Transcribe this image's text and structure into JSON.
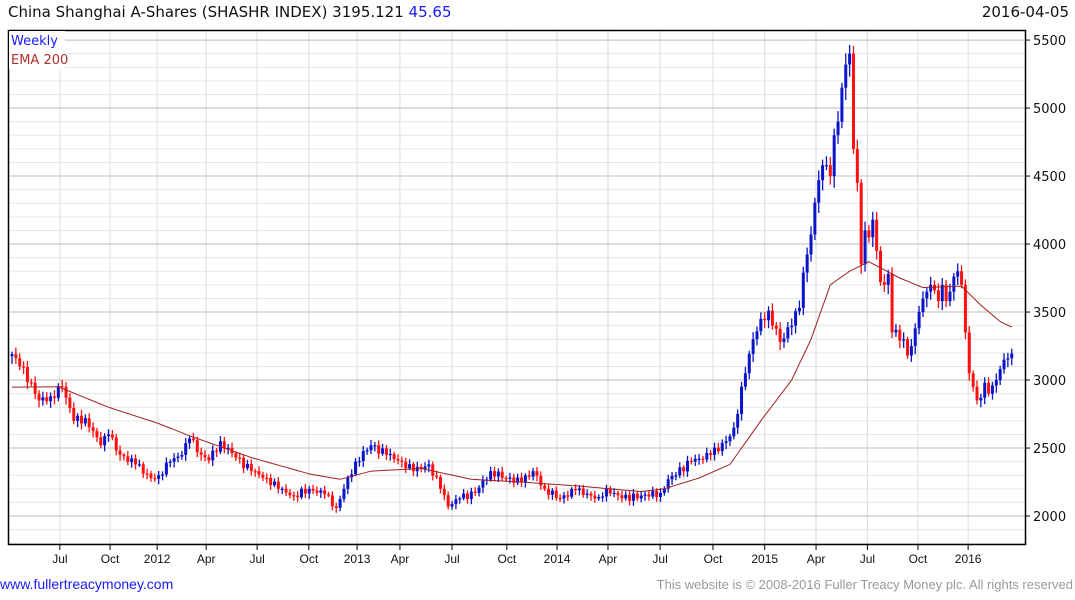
{
  "header": {
    "title": "China Shanghai A-Shares (SHASHR INDEX) 3195.121",
    "change": "45.65",
    "date": "2016-04-05"
  },
  "footer": {
    "link": "www.fullertreacymoney.com",
    "copyright": "This website is © 2008-2016 Fuller Treacy Money plc. All rights reserved"
  },
  "chart_data": {
    "type": "candlestick",
    "title": "China Shanghai A-Shares (SHASHR INDEX)",
    "legend": [
      "Weekly",
      "EMA 200"
    ],
    "legend_placement": "top-left",
    "colors": {
      "up": "#0a14c8",
      "down": "#ff1010",
      "ema": "#a02020",
      "legend_weekly": "#1a1aff",
      "legend_ema": "#b03030",
      "grid_major": "#bdbdbd",
      "grid_minor": "#e6e6e6"
    },
    "ylim": [
      1787,
      5574
    ],
    "yticks": [
      2000,
      2500,
      3000,
      3500,
      4000,
      4500,
      5000,
      5500
    ],
    "ygrid_minor_step": 100,
    "weeks": 260,
    "xticks": [
      {
        "label": "Jul",
        "week": 12.4
      },
      {
        "label": "Oct",
        "week": 25.4
      },
      {
        "label": "2012",
        "week": 37.6
      },
      {
        "label": "Apr",
        "week": 50.3
      },
      {
        "label": "Jul",
        "week": 63.5
      },
      {
        "label": "Oct",
        "week": 76.9
      },
      {
        "label": "2013",
        "week": 89.4
      },
      {
        "label": "Apr",
        "week": 100.5
      },
      {
        "label": "Jul",
        "week": 114
      },
      {
        "label": "Oct",
        "week": 128.2
      },
      {
        "label": "2014",
        "week": 141.2
      },
      {
        "label": "Apr",
        "week": 154.4
      },
      {
        "label": "Jul",
        "week": 167.9
      },
      {
        "label": "Oct",
        "week": 181.6
      },
      {
        "label": "2015",
        "week": 195
      },
      {
        "label": "Apr",
        "week": 208.3
      },
      {
        "label": "Jul",
        "week": 221.6
      },
      {
        "label": "Oct",
        "week": 234.7
      },
      {
        "label": "2016",
        "week": 247.7
      }
    ],
    "close_anchors": [
      [
        0,
        3190
      ],
      [
        2,
        3100
      ],
      [
        5,
        2980
      ],
      [
        7,
        2850
      ],
      [
        10,
        2880
      ],
      [
        13,
        2950
      ],
      [
        16,
        2700
      ],
      [
        19,
        2720
      ],
      [
        23,
        2520
      ],
      [
        25,
        2600
      ],
      [
        28,
        2450
      ],
      [
        32,
        2380
      ],
      [
        36,
        2280
      ],
      [
        38,
        2300
      ],
      [
        41,
        2400
      ],
      [
        44,
        2450
      ],
      [
        46,
        2570
      ],
      [
        49,
        2450
      ],
      [
        51,
        2410
      ],
      [
        54,
        2550
      ],
      [
        58,
        2430
      ],
      [
        62,
        2330
      ],
      [
        66,
        2280
      ],
      [
        69,
        2200
      ],
      [
        73,
        2150
      ],
      [
        77,
        2200
      ],
      [
        81,
        2160
      ],
      [
        84,
        2060
      ],
      [
        86,
        2200
      ],
      [
        89,
        2400
      ],
      [
        93,
        2520
      ],
      [
        97,
        2450
      ],
      [
        101,
        2400
      ],
      [
        104,
        2330
      ],
      [
        108,
        2380
      ],
      [
        111,
        2200
      ],
      [
        113,
        2070
      ],
      [
        116,
        2130
      ],
      [
        120,
        2170
      ],
      [
        124,
        2330
      ],
      [
        128,
        2280
      ],
      [
        132,
        2250
      ],
      [
        135,
        2330
      ],
      [
        138,
        2200
      ],
      [
        142,
        2130
      ],
      [
        146,
        2190
      ],
      [
        150,
        2150
      ],
      [
        152,
        2140
      ],
      [
        154,
        2200
      ],
      [
        158,
        2130
      ],
      [
        163,
        2150
      ],
      [
        168,
        2170
      ],
      [
        170,
        2270
      ],
      [
        176,
        2400
      ],
      [
        181,
        2450
      ],
      [
        185,
        2550
      ],
      [
        187,
        2650
      ],
      [
        190,
        3050
      ],
      [
        192,
        3300
      ],
      [
        194,
        3450
      ],
      [
        196,
        3510
      ],
      [
        199,
        3280
      ],
      [
        202,
        3400
      ],
      [
        204,
        3530
      ],
      [
        205,
        3790
      ],
      [
        207,
        4070
      ],
      [
        209,
        4470
      ],
      [
        211,
        4580
      ],
      [
        212,
        4500
      ],
      [
        213,
        4800
      ],
      [
        214,
        4900
      ],
      [
        215,
        5150
      ],
      [
        216,
        5320
      ],
      [
        217,
        5400
      ],
      [
        218,
        4700
      ],
      [
        219,
        4450
      ],
      [
        220,
        3850
      ],
      [
        221,
        4100
      ],
      [
        222,
        4050
      ],
      [
        223,
        4180
      ],
      [
        224,
        3950
      ],
      [
        225,
        3720
      ],
      [
        226,
        3700
      ],
      [
        227,
        3780
      ],
      [
        228,
        3350
      ],
      [
        229,
        3370
      ],
      [
        230,
        3290
      ],
      [
        231,
        3300
      ],
      [
        232,
        3180
      ],
      [
        233,
        3250
      ],
      [
        234,
        3380
      ],
      [
        235,
        3500
      ],
      [
        236,
        3600
      ],
      [
        237,
        3650
      ],
      [
        238,
        3700
      ],
      [
        239,
        3660
      ],
      [
        240,
        3580
      ],
      [
        241,
        3700
      ],
      [
        242,
        3580
      ],
      [
        243,
        3650
      ],
      [
        244,
        3760
      ],
      [
        245,
        3800
      ],
      [
        246,
        3700
      ],
      [
        247,
        3350
      ],
      [
        248,
        3050
      ],
      [
        249,
        2950
      ],
      [
        250,
        2850
      ],
      [
        251,
        2870
      ],
      [
        252,
        2980
      ],
      [
        253,
        2900
      ],
      [
        254,
        2960
      ],
      [
        255,
        3000
      ],
      [
        256,
        3080
      ],
      [
        257,
        3150
      ],
      [
        258,
        3160
      ],
      [
        259,
        3195
      ]
    ],
    "ema_anchors": [
      [
        0,
        2948
      ],
      [
        12,
        2950
      ],
      [
        25,
        2800
      ],
      [
        38,
        2680
      ],
      [
        46,
        2590
      ],
      [
        62,
        2430
      ],
      [
        77,
        2310
      ],
      [
        85,
        2270
      ],
      [
        93,
        2330
      ],
      [
        106,
        2350
      ],
      [
        119,
        2270
      ],
      [
        132,
        2250
      ],
      [
        147,
        2220
      ],
      [
        163,
        2180
      ],
      [
        169,
        2200
      ],
      [
        178,
        2280
      ],
      [
        186,
        2380
      ],
      [
        194,
        2700
      ],
      [
        202,
        3000
      ],
      [
        207,
        3300
      ],
      [
        212,
        3700
      ],
      [
        217,
        3800
      ],
      [
        222,
        3870
      ],
      [
        230,
        3750
      ],
      [
        236,
        3680
      ],
      [
        246,
        3690
      ],
      [
        251,
        3550
      ],
      [
        256,
        3430
      ],
      [
        259,
        3390
      ]
    ]
  }
}
